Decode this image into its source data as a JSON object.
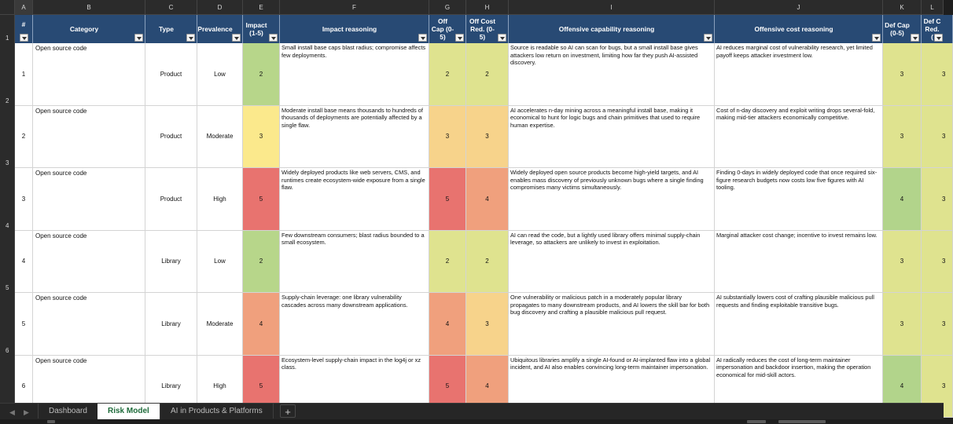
{
  "columns": {
    "letters": [
      "A",
      "B",
      "C",
      "D",
      "E",
      "F",
      "G",
      "H",
      "I",
      "J",
      "K",
      "L"
    ]
  },
  "headers": {
    "num": "#",
    "category": "Category",
    "type": "Type",
    "prevalence": "Prevalence",
    "impact": "Impact (1-5)",
    "impact_reasoning": "Impact reasoning",
    "off_cap": "Off Cap (0-5)",
    "off_cost": "Off Cost Red. (0-5)",
    "off_cap_reasoning": "Offensive capability reasoning",
    "off_cost_reasoning": "Offensive cost reasoning",
    "def_cap": "Def Cap (0-5)",
    "def_cost": "Def C Red. ("
  },
  "row_numbers": [
    "1",
    "2",
    "3",
    "4",
    "5",
    "6"
  ],
  "rows": [
    {
      "num": "1",
      "category": "Open source code",
      "type": "Product",
      "prevalence": "Low",
      "impact": "2",
      "impact_color": "#b7d68a",
      "impact_reasoning": "Small install base caps blast radius; compromise affects few deployments.",
      "off_cap": "2",
      "off_cap_color": "#dfe38f",
      "off_cost": "2",
      "off_cost_color": "#dfe38f",
      "off_cap_reasoning": "Source is readable so AI can scan for bugs, but a small install base gives attackers low return on investment, limiting how far they push AI-assisted discovery.",
      "off_cost_reasoning": "AI reduces marginal cost of vulnerability research, yet limited payoff keeps attacker investment low.",
      "def_cap": "3",
      "def_cap_color": "#dfe38f",
      "def_cost": "3",
      "def_cost_color": "#dfe38f"
    },
    {
      "num": "2",
      "category": "Open source code",
      "type": "Product",
      "prevalence": "Moderate",
      "impact": "3",
      "impact_color": "#fbe98c",
      "impact_reasoning": "Moderate install base means thousands to hundreds of thousands of deployments are potentially affected by a single flaw.",
      "off_cap": "3",
      "off_cap_color": "#f7d38b",
      "off_cost": "3",
      "off_cost_color": "#f7d38b",
      "off_cap_reasoning": "AI accelerates n-day mining across a meaningful install base, making it economical to hunt for logic bugs and chain primitives that used to require human expertise.",
      "off_cost_reasoning": "Cost of n-day discovery and exploit writing drops several-fold, making mid-tier attackers economically competitive.",
      "def_cap": "3",
      "def_cap_color": "#dfe38f",
      "def_cost": "3",
      "def_cost_color": "#dfe38f"
    },
    {
      "num": "3",
      "category": "Open source code",
      "type": "Product",
      "prevalence": "High",
      "impact": "5",
      "impact_color": "#e8736f",
      "impact_reasoning": "Widely deployed products like web servers, CMS, and runtimes create ecosystem-wide exposure from a single flaw.",
      "off_cap": "5",
      "off_cap_color": "#e8736f",
      "off_cost": "4",
      "off_cost_color": "#f0a07d",
      "off_cap_reasoning": "Widely deployed open source products become high-yield targets, and AI enables mass discovery of previously unknown bugs where a single finding compromises many victims simultaneously.",
      "off_cost_reasoning": "Finding 0-days in widely deployed code that once required six-figure research budgets now costs low five figures with AI tooling.",
      "def_cap": "4",
      "def_cap_color": "#b2d48b",
      "def_cost": "3",
      "def_cost_color": "#dfe38f"
    },
    {
      "num": "4",
      "category": "Open source code",
      "type": "Library",
      "prevalence": "Low",
      "impact": "2",
      "impact_color": "#b7d68a",
      "impact_reasoning": "Few downstream consumers; blast radius bounded to a small ecosystem.",
      "off_cap": "2",
      "off_cap_color": "#dfe38f",
      "off_cost": "2",
      "off_cost_color": "#dfe38f",
      "off_cap_reasoning": "AI can read the code, but a lightly used library offers minimal supply-chain leverage, so attackers are unlikely to invest in exploitation.",
      "off_cost_reasoning": "Marginal attacker cost change; incentive to invest remains low.",
      "def_cap": "3",
      "def_cap_color": "#dfe38f",
      "def_cost": "3",
      "def_cost_color": "#dfe38f"
    },
    {
      "num": "5",
      "category": "Open source code",
      "type": "Library",
      "prevalence": "Moderate",
      "impact": "4",
      "impact_color": "#f0a07d",
      "impact_reasoning": "Supply-chain leverage: one library vulnerability cascades across many downstream applications.",
      "off_cap": "4",
      "off_cap_color": "#f0a07d",
      "off_cost": "3",
      "off_cost_color": "#f7d38b",
      "off_cap_reasoning": "One vulnerability or malicious patch in a moderately popular library propagates to many downstream products, and AI lowers the skill bar for both bug discovery and crafting a plausible malicious pull request.",
      "off_cost_reasoning": "AI substantially lowers cost of crafting plausible malicious pull requests and finding exploitable transitive bugs.",
      "def_cap": "3",
      "def_cap_color": "#dfe38f",
      "def_cost": "3",
      "def_cost_color": "#dfe38f"
    },
    {
      "num": "6",
      "category": "Open source code",
      "type": "Library",
      "prevalence": "High",
      "impact": "5",
      "impact_color": "#e8736f",
      "impact_reasoning": "Ecosystem-level supply-chain impact in the log4j or xz class.",
      "off_cap": "5",
      "off_cap_color": "#e8736f",
      "off_cost": "4",
      "off_cost_color": "#f0a07d",
      "off_cap_reasoning": "Ubiquitous libraries amplify a single AI-found or AI-implanted flaw into a global incident, and AI also enables convincing long-term maintainer impersonation.",
      "off_cost_reasoning": "AI radically reduces the cost of long-term maintainer impersonation and backdoor insertion, making the operation economical for mid-skill actors.",
      "def_cap": "4",
      "def_cap_color": "#b2d48b",
      "def_cost": "3",
      "def_cost_color": "#dfe38f"
    }
  ],
  "tabs": [
    {
      "label": "Dashboard"
    },
    {
      "label": "Risk Model",
      "active": true
    },
    {
      "label": "AI in Products & Platforms"
    }
  ],
  "add_tab_label": "+",
  "nav": {
    "prev": "◀",
    "next": "▶"
  }
}
